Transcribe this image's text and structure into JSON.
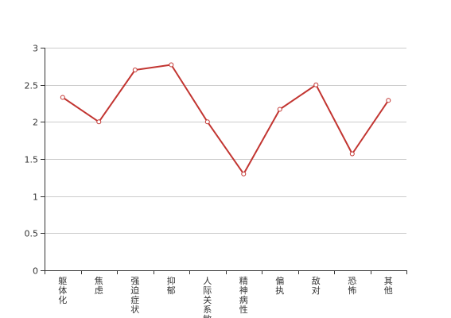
{
  "chart_data": {
    "type": "line",
    "title": "",
    "xlabel": "",
    "ylabel": "",
    "categories": [
      "躯体化",
      "焦虑",
      "强迫症状",
      "抑郁",
      "人际关系敏感",
      "精神病性",
      "偏执",
      "敌对",
      "恐怖",
      "其他"
    ],
    "series": [
      {
        "values": [
          2.33,
          2.0,
          2.7,
          2.77,
          2.0,
          1.3,
          2.17,
          2.5,
          1.57,
          2.29
        ]
      }
    ],
    "ylim": [
      0,
      3
    ],
    "yticks": [
      0,
      0.5,
      1,
      1.5,
      2,
      2.5,
      3
    ],
    "ytick_labels": [
      "0",
      "0.5",
      "1",
      "1.5",
      "2",
      "2.5",
      "3"
    ],
    "grid": "horizontal",
    "legend": "none"
  },
  "colors": {
    "series": "#c23531",
    "grid": "#cccccc",
    "axis": "#333333",
    "text": "#333333"
  }
}
